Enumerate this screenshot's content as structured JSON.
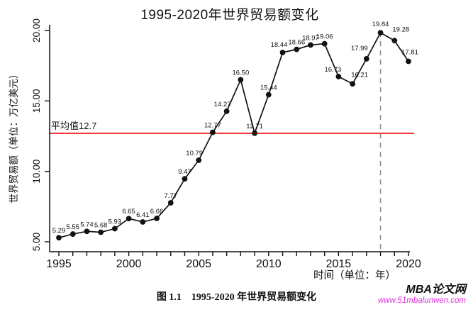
{
  "chart_data": {
    "type": "line",
    "title": "1995-2020年世界贸易额变化",
    "xlabel": "时间（单位：年）",
    "ylabel": "世界贸易额（单位：万亿美元）",
    "x": [
      1995,
      1996,
      1997,
      1998,
      1999,
      2000,
      2001,
      2002,
      2003,
      2004,
      2005,
      2006,
      2007,
      2008,
      2009,
      2010,
      2011,
      2012,
      2013,
      2014,
      2015,
      2016,
      2017,
      2018,
      2019,
      2020
    ],
    "values": [
      5.29,
      5.55,
      5.74,
      5.68,
      5.93,
      6.65,
      6.41,
      6.66,
      7.77,
      9.47,
      10.79,
      12.77,
      14.27,
      16.5,
      12.71,
      15.44,
      18.44,
      18.66,
      18.97,
      19.06,
      16.73,
      16.21,
      17.99,
      19.84,
      19.28,
      17.81
    ],
    "ylim": [
      5,
      20
    ],
    "yticks": [
      {
        "v": 5,
        "label": "5.00"
      },
      {
        "v": 10,
        "label": "10.00"
      },
      {
        "v": 15,
        "label": "15.00"
      },
      {
        "v": 20,
        "label": "20.00"
      }
    ],
    "xticks_major": [
      1995,
      2000,
      2005,
      2010,
      2015,
      2020
    ],
    "xticks_minor_every": 1,
    "grid": false,
    "legend": "none",
    "marker": "filled-circle",
    "line_color": "#111111",
    "average_line": {
      "value": 12.7,
      "label": "平均值12.7",
      "color": "#f23b37"
    },
    "reference_line": {
      "x": 2018,
      "style": "dashed",
      "color": "#8c8c8c"
    },
    "label_offsets": {
      "2005": [
        -6,
        -7
      ],
      "2007": [
        -6,
        -7
      ],
      "2011": [
        -5,
        -8
      ],
      "2015": [
        -8,
        -7
      ],
      "2016": [
        10,
        -10
      ],
      "2017": [
        -10,
        -12
      ],
      "2018": [
        0,
        -9
      ],
      "2019": [
        9,
        -13
      ],
      "2020": [
        2,
        -10
      ]
    }
  },
  "caption": "图 1.1　1995-2020 年世界贸易额变化",
  "watermark": {
    "brand": "MBA论文网",
    "site": "www.51mbalunwen.com",
    "site_color": "#e22ee2"
  }
}
